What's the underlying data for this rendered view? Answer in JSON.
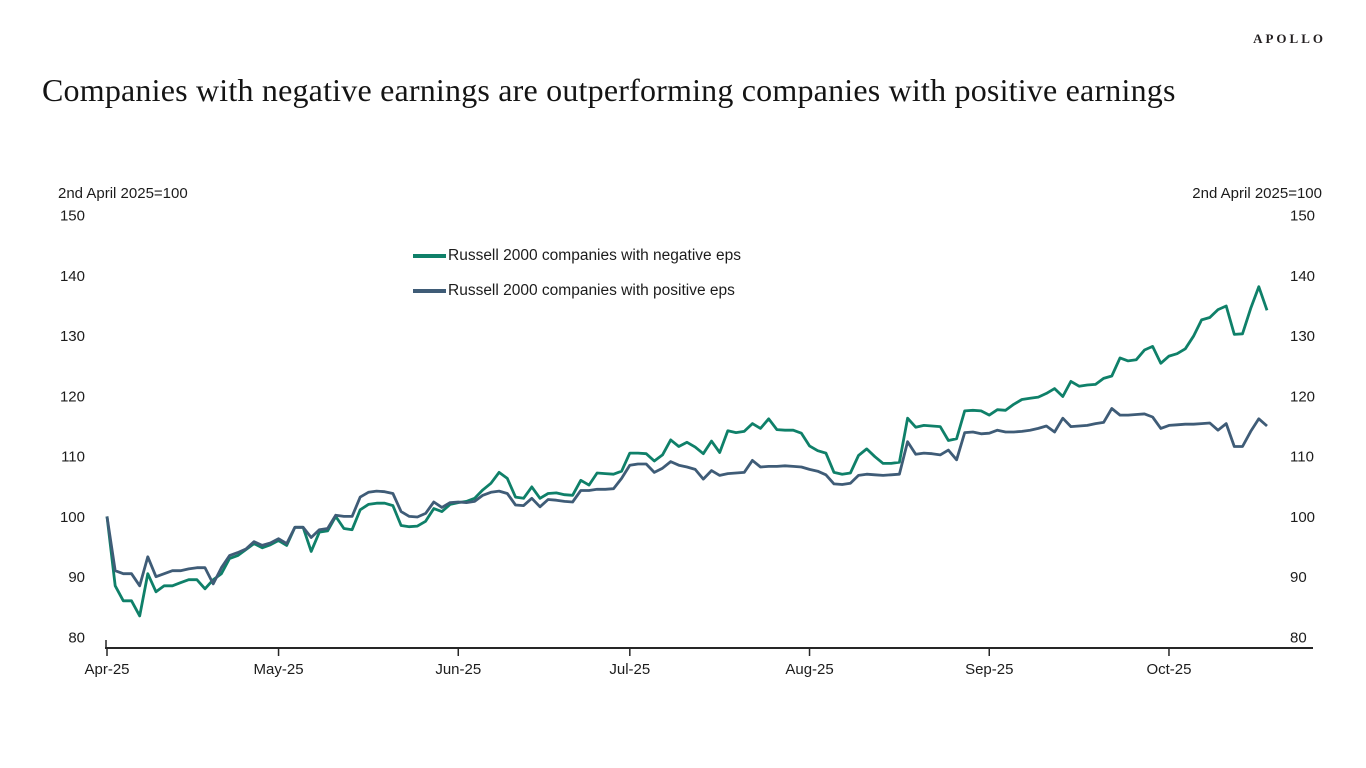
{
  "logo": {
    "text": "APOLLO"
  },
  "title": "Companies with negative earnings are outperforming companies with positive earnings",
  "chart_data": {
    "type": "line",
    "title": "Companies with negative earnings are outperforming companies with positive earnings",
    "index_note": "2nd April 2025=100",
    "left_axis_header": "2nd April 2025=100",
    "right_axis_header": "2nd April 2025=100",
    "ylim": [
      80,
      150
    ],
    "y_ticks": [
      150,
      140,
      130,
      120,
      110,
      100,
      90,
      80
    ],
    "grid": "off",
    "legend_position": "top-center-inside",
    "axis_color": "#262626",
    "x_tick_labels": [
      "Apr-25",
      "May-25",
      "Jun-25",
      "Jul-25",
      "Aug-25",
      "Sep-25",
      "Oct-25"
    ],
    "x_tick_indices": [
      0,
      21,
      43,
      64,
      86,
      108,
      130
    ],
    "x_unit": "trading days, 2 Apr 2025 - 21 Oct 2025",
    "series": [
      {
        "name": "Russell 2000 companies with negative eps",
        "color": "#0f8069",
        "values": [
          100,
          88.5,
          86,
          86,
          83.5,
          90.5,
          87.5,
          88.5,
          88.5,
          89,
          89.5,
          89.5,
          88,
          89.5,
          90.5,
          93,
          93.5,
          94.5,
          95.5,
          94.8,
          95.3,
          96,
          95.2,
          98.2,
          98.2,
          94.2,
          97.4,
          97.6,
          100,
          98,
          97.8,
          101.1,
          102,
          102.2,
          102.2,
          101.8,
          98.5,
          98.3,
          98.4,
          99.2,
          101.3,
          100.8,
          102,
          102.3,
          102.5,
          103,
          104.4,
          105.5,
          107.3,
          106.3,
          103.2,
          103,
          104.9,
          103,
          103.8,
          103.9,
          103.6,
          103.5,
          106,
          105.2,
          107.2,
          107.1,
          107,
          107.5,
          110.5,
          110.5,
          110.4,
          109.2,
          110.2,
          112.7,
          111.6,
          112.3,
          111.5,
          110.4,
          112.5,
          110.6,
          114.2,
          113.9,
          114.1,
          115.4,
          114.6,
          116.2,
          114.4,
          114.3,
          114.3,
          113.8,
          111.7,
          110.9,
          110.5,
          107.3,
          107,
          107.2,
          110.1,
          111.2,
          109.9,
          108.8,
          108.8,
          109,
          116.3,
          114.8,
          115.1,
          115,
          114.9,
          112.6,
          112.9,
          117.5,
          117.6,
          117.5,
          116.8,
          117.7,
          117.6,
          118.6,
          119.4,
          119.6,
          119.8,
          120.4,
          121.2,
          119.9,
          122.4,
          121.6,
          121.8,
          121.9,
          122.9,
          123.3,
          126.3,
          125.8,
          126,
          127.6,
          128.2,
          125.4,
          126.6,
          127,
          127.8,
          129.9,
          132.6,
          133,
          134.3,
          134.9,
          130.2,
          130.3,
          134.5,
          138.1,
          134.2
        ]
      },
      {
        "name": "Russell 2000 companies with positive eps",
        "color": "#3f5c77",
        "values": [
          100,
          91,
          90.5,
          90.5,
          88.5,
          93.3,
          90,
          90.5,
          91,
          91,
          91.3,
          91.5,
          91.5,
          88.8,
          91.5,
          93.5,
          94,
          94.6,
          95.8,
          95.2,
          95.6,
          96.3,
          95.5,
          98.2,
          98.2,
          96.5,
          97.8,
          98,
          100.2,
          100,
          100,
          103.2,
          104,
          104.2,
          104.1,
          103.8,
          100.8,
          100,
          99.9,
          100.5,
          102.4,
          101.5,
          102.3,
          102.4,
          102.3,
          102.5,
          103.5,
          104,
          104.2,
          103.8,
          101.9,
          101.8,
          103,
          101.6,
          102.8,
          102.7,
          102.5,
          102.4,
          104.3,
          104.3,
          104.5,
          104.5,
          104.6,
          106.3,
          108.5,
          108.7,
          108.7,
          107.3,
          108,
          109.1,
          108.5,
          108.2,
          107.8,
          106.2,
          107.6,
          106.8,
          107.1,
          107.2,
          107.3,
          109.3,
          108.2,
          108.3,
          108.3,
          108.4,
          108.3,
          108.2,
          107.8,
          107.5,
          106.9,
          105.4,
          105.3,
          105.5,
          106.8,
          107,
          106.9,
          106.8,
          106.9,
          107,
          112.4,
          110.3,
          110.5,
          110.4,
          110.2,
          111,
          109.4,
          113.9,
          114,
          113.7,
          113.8,
          114.3,
          114,
          114,
          114.1,
          114.3,
          114.6,
          115,
          114,
          116.3,
          114.9,
          115,
          115.1,
          115.4,
          115.6,
          117.9,
          116.8,
          116.8,
          116.9,
          117,
          116.5,
          114.6,
          115.1,
          115.2,
          115.3,
          115.3,
          115.4,
          115.5,
          114.3,
          115.4,
          111.6,
          111.6,
          114.1,
          116.2,
          115
        ]
      }
    ]
  }
}
